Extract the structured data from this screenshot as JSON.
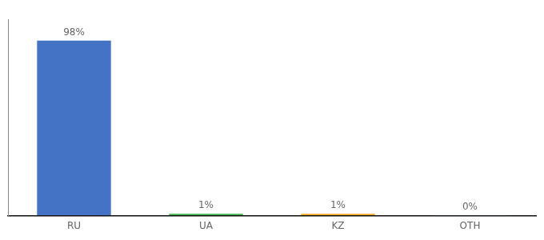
{
  "chart_data": {
    "type": "bar",
    "categories": [
      "RU",
      "UA",
      "KZ",
      "OTH"
    ],
    "values": [
      98,
      1,
      1,
      0.2
    ],
    "value_labels": [
      "98%",
      "1%",
      "1%",
      "0%"
    ],
    "colors": [
      "#4472c4",
      "#3db54a",
      "#f5a623",
      "#4472c4"
    ],
    "ylim": [
      0,
      110
    ],
    "grid": false,
    "legend": false,
    "data_labels": true,
    "tick_labels": "x"
  }
}
